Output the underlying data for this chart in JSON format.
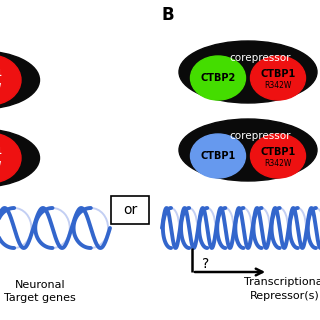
{
  "bg_color": "#ffffff",
  "black": "#0a0a0a",
  "red": "#ee1111",
  "green": "#44dd00",
  "blue_inner": "#6699ee",
  "helix_color": "#3366cc",
  "helix_light": "#aabbee",
  "label_B": "B",
  "corepressor_text": "corepressor",
  "ctbp2_text": "CTBP2",
  "ctbp1_text": "CTBP1",
  "ctbp1r_text": "CTBP1",
  "r342w_text": "R342W",
  "or_text": "or",
  "question_text": "?",
  "neuronal_line1": "Neuronal",
  "neuronal_line2": "Target genes",
  "trans_line1": "Transcriptional",
  "trans_line2": "Repressor(s)"
}
